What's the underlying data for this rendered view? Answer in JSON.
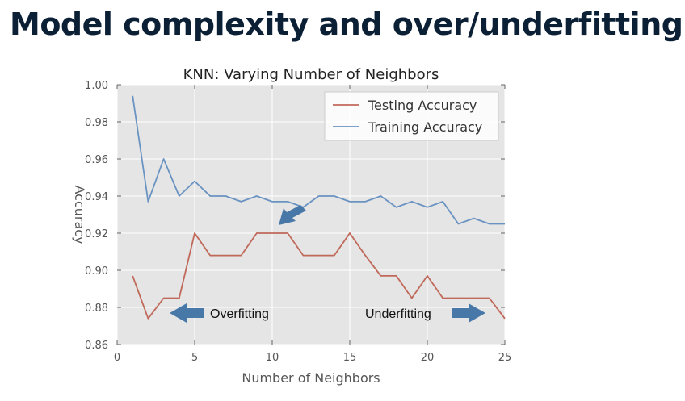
{
  "slide": {
    "title": "Model complexity and over/underfitting"
  },
  "colors": {
    "testing": "#c0695a",
    "training": "#6a93c2",
    "arrow": "#4878a8",
    "plot_bg": "#e5e5e5",
    "title_text": "#0b1f35"
  },
  "chart_data": {
    "type": "line",
    "title": "KNN: Varying Number of Neighbors",
    "xlabel": "Number of Neighbors",
    "ylabel": "Accuracy",
    "xlim": [
      0,
      25
    ],
    "ylim": [
      0.86,
      1.0
    ],
    "xticks": [
      0,
      5,
      10,
      15,
      20,
      25
    ],
    "yticks": [
      0.86,
      0.88,
      0.9,
      0.92,
      0.94,
      0.96,
      0.98,
      1.0
    ],
    "xtick_labels": [
      "0",
      "5",
      "10",
      "15",
      "20",
      "25"
    ],
    "ytick_labels": [
      "0.86",
      "0.88",
      "0.90",
      "0.92",
      "0.94",
      "0.96",
      "0.98",
      "1.00"
    ],
    "grid": true,
    "legend_position": "top-right",
    "x": [
      1,
      2,
      3,
      4,
      5,
      6,
      7,
      8,
      9,
      10,
      11,
      12,
      13,
      14,
      15,
      16,
      17,
      18,
      19,
      20,
      21,
      22,
      23,
      24,
      25
    ],
    "series": [
      {
        "name": "Testing Accuracy",
        "color": "#c0695a",
        "values": [
          0.897,
          0.874,
          0.885,
          0.885,
          0.92,
          0.908,
          0.908,
          0.908,
          0.92,
          0.92,
          0.92,
          0.908,
          0.908,
          0.908,
          0.92,
          0.908,
          0.897,
          0.897,
          0.885,
          0.897,
          0.885,
          0.885,
          0.885,
          0.885,
          0.874
        ]
      },
      {
        "name": "Training Accuracy",
        "color": "#6a93c2",
        "values": [
          0.994,
          0.937,
          0.96,
          0.94,
          0.948,
          0.94,
          0.94,
          0.937,
          0.94,
          0.937,
          0.937,
          0.934,
          0.94,
          0.94,
          0.937,
          0.937,
          0.94,
          0.934,
          0.937,
          0.934,
          0.937,
          0.925,
          0.928,
          0.925,
          0.925
        ]
      }
    ],
    "annotations": [
      {
        "text": "Overfitting",
        "arrow_direction": "left"
      },
      {
        "text": "Underfitting",
        "arrow_direction": "right"
      }
    ]
  }
}
